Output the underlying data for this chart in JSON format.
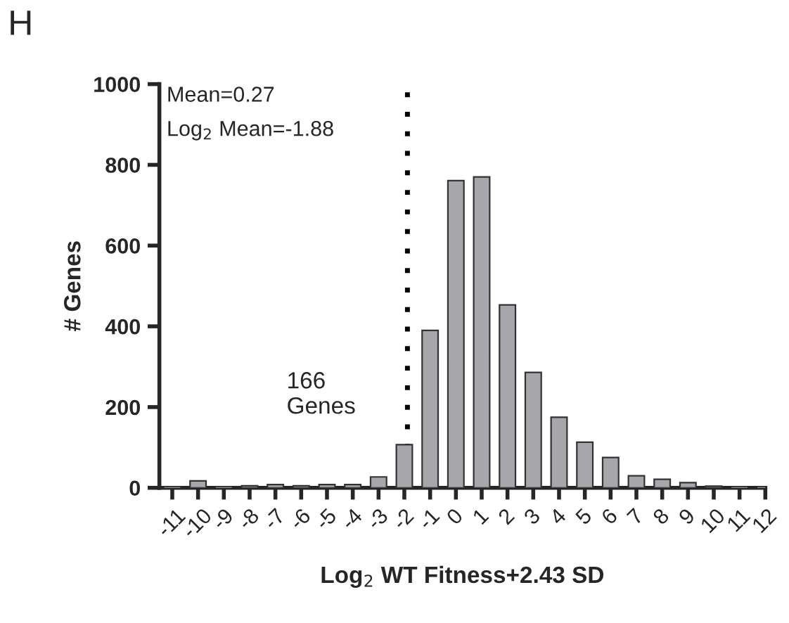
{
  "chart_data": {
    "type": "histogram",
    "bins": [
      -11.5,
      -10.5,
      -9.5,
      -8.5,
      -7.5,
      -6.5,
      -5.5,
      -4.5,
      -3.5,
      -2.5,
      -1.5,
      -0.5,
      0.5,
      1.5,
      2.5,
      3.5,
      4.5,
      5.5,
      6.5,
      7.5,
      8.5,
      9.5,
      10.5,
      11.5,
      12.5
    ],
    "values": [
      0,
      17,
      0,
      5,
      8,
      5,
      8,
      8,
      27,
      107,
      390,
      761,
      770,
      453,
      286,
      175,
      113,
      75,
      30,
      21,
      13,
      4,
      0,
      0
    ],
    "color": "#a6a6ab",
    "xlabel": "Log$_{2}$ WT Fitness+2.43 SD",
    "ylabel": "# Genes",
    "xlim": [
      -11.5,
      12
    ],
    "xticks": [
      -11,
      -10,
      -9,
      -8,
      -7,
      -6,
      -5,
      -4,
      -3,
      -2,
      -1,
      0,
      1,
      2,
      3,
      4,
      5,
      6,
      7,
      8,
      9,
      10,
      11,
      12
    ],
    "ylim": [
      0,
      1000
    ],
    "yticks": [
      0,
      200,
      400,
      600,
      800,
      1000
    ],
    "ref_lines": [
      {
        "axis": "x",
        "value": -1.88,
        "line_style": "dotted",
        "color": "#000000"
      }
    ],
    "annotations": [
      "H",
      "Mean=0.27",
      "Log$_{2}$ Mean=-1.88",
      "166\nGenes"
    ],
    "grid": false
  }
}
